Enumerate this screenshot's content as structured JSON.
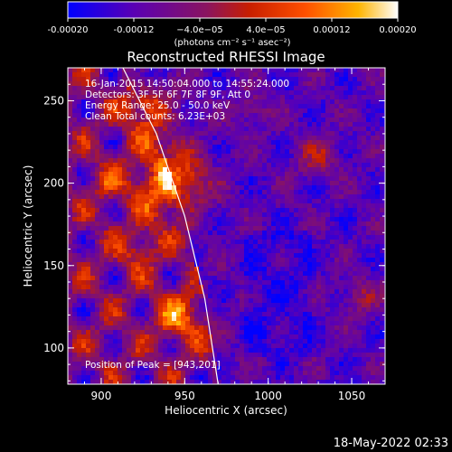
{
  "chart_data": {
    "type": "heatmap",
    "title": "Reconstructed RHESSI Image",
    "xlabel": "Heliocentric X (arcsec)",
    "ylabel": "Heliocentric Y (arcsec)",
    "xlim": [
      880,
      1070
    ],
    "ylim": [
      78,
      270
    ],
    "x_ticks": [
      900,
      950,
      1000,
      1050
    ],
    "y_ticks": [
      100,
      150,
      200,
      250
    ],
    "x_tick_labels": [
      "900",
      "950",
      "1000",
      "1050"
    ],
    "y_tick_labels": [
      "100",
      "150",
      "200",
      "250"
    ],
    "colorbar": {
      "range": [
        -0.0002,
        0.0002
      ],
      "tick_labels": [
        "-0.00020",
        "-0.00012",
        "−4.0e−05",
        "4.0e−05",
        "0.00012",
        "0.00020"
      ],
      "tick_values": [
        -0.0002,
        -0.00012,
        -4e-05,
        4e-05,
        0.00012,
        0.0002
      ],
      "unit_label": "(photons cm⁻² s⁻¹ asec⁻²)",
      "colors": [
        "#0000ff",
        "#5a00b4",
        "#8a1460",
        "#c81e00",
        "#ff5000",
        "#ffb400",
        "#ffffff"
      ]
    },
    "annotations": {
      "time_range": "16-Jan-2015 14:50:04.000 to 14:55:24.000",
      "detectors": "Detectors: 3F 5F 6F 7F 8F 9F, Att 0",
      "energy_range": "Energy Range: 25.0 - 50.0 keV",
      "clean_info": "Clean    Total counts: 6.23E+03",
      "peak_position": "Position of Peak = [943,201]"
    },
    "peak": {
      "x": 943,
      "y": 201
    },
    "limb_curve": {
      "x": [
        913,
        933,
        950,
        962,
        970
      ],
      "y": [
        270,
        230,
        180,
        130,
        78
      ]
    }
  },
  "footer": {
    "timestamp": "18-May-2022 02:33"
  }
}
